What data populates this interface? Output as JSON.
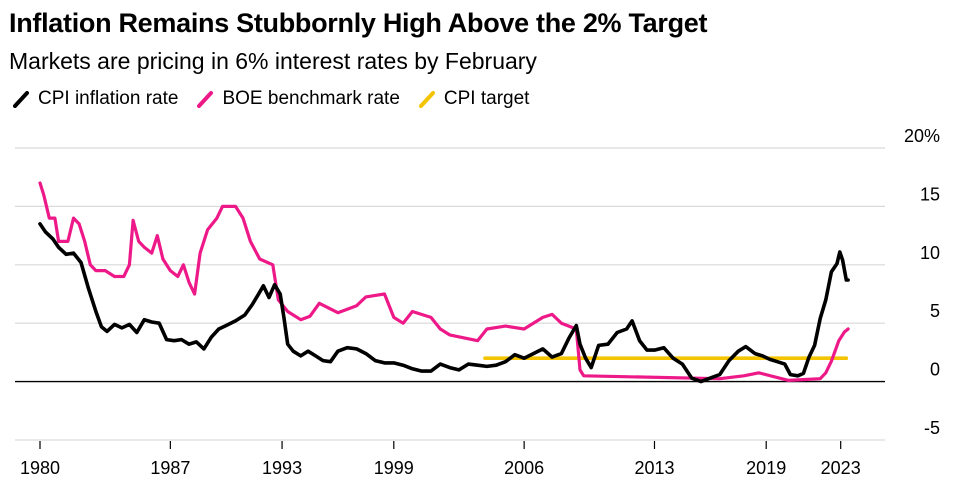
{
  "title": "Inflation Remains Stubbornly High Above the 2% Target",
  "subtitle": "Markets are pricing in 6% interest rates by February",
  "colors": {
    "cpi": "#000000",
    "boe": "#ee1989",
    "target": "#f5c400",
    "grid": "#d9d9d9",
    "zero": "#000000"
  },
  "chart_data": {
    "type": "line",
    "title": "Inflation Remains Stubbornly High Above the 2% Target",
    "subtitle": "Markets are pricing in 6% interest rates by February",
    "xlabel": "",
    "ylabel": "",
    "xlim": [
      1980,
      2023.5
    ],
    "ylim": [
      -5,
      20
    ],
    "y_ticks": [
      20,
      15,
      10,
      5,
      0,
      -5
    ],
    "y_tick_labels": [
      "20%",
      "15",
      "10",
      "5",
      "0",
      "-5"
    ],
    "x_ticks": [
      1980,
      1987,
      1993,
      1999,
      2006,
      2013,
      2019,
      2023
    ],
    "x_tick_labels": [
      "1980",
      "1987",
      "1993",
      "1999",
      "2006",
      "2013",
      "2019",
      "2023"
    ],
    "grid": true,
    "legend_position": "top-left",
    "series": [
      {
        "name": "CPI inflation rate",
        "color": "#000000",
        "points": [
          [
            1980.0,
            13.5
          ],
          [
            1980.3,
            12.8
          ],
          [
            1980.7,
            12.2
          ],
          [
            1981.0,
            11.5
          ],
          [
            1981.4,
            10.9
          ],
          [
            1981.8,
            11.0
          ],
          [
            1982.2,
            10.2
          ],
          [
            1982.6,
            8.0
          ],
          [
            1983.0,
            6.0
          ],
          [
            1983.3,
            4.7
          ],
          [
            1983.6,
            4.3
          ],
          [
            1984.0,
            4.9
          ],
          [
            1984.4,
            4.6
          ],
          [
            1984.8,
            4.9
          ],
          [
            1985.2,
            4.2
          ],
          [
            1985.6,
            5.3
          ],
          [
            1986.0,
            5.1
          ],
          [
            1986.4,
            5.0
          ],
          [
            1986.8,
            3.6
          ],
          [
            1987.2,
            3.5
          ],
          [
            1987.6,
            3.6
          ],
          [
            1988.0,
            3.2
          ],
          [
            1988.4,
            3.4
          ],
          [
            1988.8,
            2.8
          ],
          [
            1989.2,
            3.8
          ],
          [
            1989.6,
            4.5
          ],
          [
            1990.0,
            4.8
          ],
          [
            1990.5,
            5.2
          ],
          [
            1991.0,
            5.7
          ],
          [
            1991.4,
            6.6
          ],
          [
            1991.7,
            7.4
          ],
          [
            1992.0,
            8.2
          ],
          [
            1992.3,
            7.2
          ],
          [
            1992.6,
            8.3
          ],
          [
            1992.9,
            7.5
          ],
          [
            1993.1,
            5.5
          ],
          [
            1993.3,
            3.2
          ],
          [
            1993.6,
            2.6
          ],
          [
            1994.0,
            2.2
          ],
          [
            1994.4,
            2.6
          ],
          [
            1994.8,
            2.2
          ],
          [
            1995.2,
            1.8
          ],
          [
            1995.6,
            1.7
          ],
          [
            1996.0,
            2.6
          ],
          [
            1996.5,
            2.9
          ],
          [
            1997.0,
            2.8
          ],
          [
            1997.5,
            2.4
          ],
          [
            1998.0,
            1.8
          ],
          [
            1998.5,
            1.6
          ],
          [
            1999.0,
            1.6
          ],
          [
            1999.5,
            1.4
          ],
          [
            2000.0,
            1.1
          ],
          [
            2000.5,
            0.9
          ],
          [
            2001.0,
            0.9
          ],
          [
            2001.5,
            1.5
          ],
          [
            2002.0,
            1.2
          ],
          [
            2002.5,
            1.0
          ],
          [
            2003.0,
            1.5
          ],
          [
            2003.5,
            1.4
          ],
          [
            2004.0,
            1.3
          ],
          [
            2004.5,
            1.4
          ],
          [
            2005.0,
            1.7
          ],
          [
            2005.5,
            2.3
          ],
          [
            2006.0,
            2.0
          ],
          [
            2006.5,
            2.4
          ],
          [
            2007.0,
            2.8
          ],
          [
            2007.5,
            2.1
          ],
          [
            2008.0,
            2.4
          ],
          [
            2008.4,
            3.7
          ],
          [
            2008.8,
            4.8
          ],
          [
            2009.0,
            3.2
          ],
          [
            2009.3,
            2.0
          ],
          [
            2009.6,
            1.2
          ],
          [
            2010.0,
            3.1
          ],
          [
            2010.5,
            3.2
          ],
          [
            2011.0,
            4.2
          ],
          [
            2011.5,
            4.5
          ],
          [
            2011.8,
            5.2
          ],
          [
            2012.2,
            3.5
          ],
          [
            2012.6,
            2.7
          ],
          [
            2013.0,
            2.7
          ],
          [
            2013.5,
            2.9
          ],
          [
            2014.0,
            2.0
          ],
          [
            2014.5,
            1.5
          ],
          [
            2015.0,
            0.3
          ],
          [
            2015.5,
            0.0
          ],
          [
            2016.0,
            0.3
          ],
          [
            2016.5,
            0.6
          ],
          [
            2017.0,
            1.8
          ],
          [
            2017.5,
            2.6
          ],
          [
            2017.9,
            3.0
          ],
          [
            2018.4,
            2.4
          ],
          [
            2018.8,
            2.2
          ],
          [
            2019.2,
            1.9
          ],
          [
            2019.6,
            1.7
          ],
          [
            2020.0,
            1.5
          ],
          [
            2020.3,
            0.6
          ],
          [
            2020.7,
            0.5
          ],
          [
            2021.0,
            0.7
          ],
          [
            2021.3,
            2.1
          ],
          [
            2021.6,
            3.1
          ],
          [
            2021.9,
            5.4
          ],
          [
            2022.2,
            7.0
          ],
          [
            2022.5,
            9.4
          ],
          [
            2022.8,
            10.1
          ],
          [
            2022.95,
            11.1
          ],
          [
            2023.1,
            10.4
          ],
          [
            2023.3,
            8.7
          ],
          [
            2023.4,
            8.7
          ]
        ]
      },
      {
        "name": "BOE benchmark rate",
        "color": "#ee1989",
        "points": [
          [
            1980.0,
            17.0
          ],
          [
            1980.2,
            16.0
          ],
          [
            1980.5,
            14.0
          ],
          [
            1980.8,
            14.0
          ],
          [
            1981.0,
            12.0
          ],
          [
            1981.5,
            12.0
          ],
          [
            1981.8,
            14.0
          ],
          [
            1982.1,
            13.5
          ],
          [
            1982.4,
            12.0
          ],
          [
            1982.7,
            10.0
          ],
          [
            1983.0,
            9.5
          ],
          [
            1983.5,
            9.5
          ],
          [
            1984.0,
            9.0
          ],
          [
            1984.5,
            9.0
          ],
          [
            1984.8,
            10.0
          ],
          [
            1985.0,
            13.8
          ],
          [
            1985.3,
            12.0
          ],
          [
            1985.6,
            11.5
          ],
          [
            1986.0,
            11.0
          ],
          [
            1986.3,
            12.5
          ],
          [
            1986.6,
            10.5
          ],
          [
            1987.0,
            9.5
          ],
          [
            1987.4,
            9.0
          ],
          [
            1987.7,
            10.0
          ],
          [
            1988.0,
            8.5
          ],
          [
            1988.3,
            7.5
          ],
          [
            1988.6,
            11.0
          ],
          [
            1989.0,
            13.0
          ],
          [
            1989.5,
            14.0
          ],
          [
            1989.8,
            15.0
          ],
          [
            1990.5,
            15.0
          ],
          [
            1990.9,
            14.0
          ],
          [
            1991.3,
            12.0
          ],
          [
            1991.8,
            10.5
          ],
          [
            1992.5,
            10.0
          ],
          [
            1992.8,
            7.0
          ],
          [
            1993.3,
            6.0
          ],
          [
            1994.0,
            5.3
          ],
          [
            1994.5,
            5.6
          ],
          [
            1995.0,
            6.7
          ],
          [
            1996.0,
            5.9
          ],
          [
            1997.0,
            6.5
          ],
          [
            1997.5,
            7.25
          ],
          [
            1998.5,
            7.5
          ],
          [
            1999.0,
            5.5
          ],
          [
            1999.5,
            5.0
          ],
          [
            2000.0,
            6.0
          ],
          [
            2001.0,
            5.5
          ],
          [
            2001.5,
            4.5
          ],
          [
            2002.0,
            4.0
          ],
          [
            2003.5,
            3.5
          ],
          [
            2004.0,
            4.5
          ],
          [
            2005.0,
            4.75
          ],
          [
            2006.0,
            4.5
          ],
          [
            2007.0,
            5.5
          ],
          [
            2007.5,
            5.75
          ],
          [
            2008.0,
            5.0
          ],
          [
            2008.8,
            4.5
          ],
          [
            2009.0,
            1.0
          ],
          [
            2009.2,
            0.5
          ],
          [
            2016.5,
            0.25
          ],
          [
            2017.8,
            0.5
          ],
          [
            2018.6,
            0.75
          ],
          [
            2020.2,
            0.1
          ],
          [
            2021.9,
            0.25
          ],
          [
            2022.2,
            0.75
          ],
          [
            2022.5,
            1.75
          ],
          [
            2022.9,
            3.5
          ],
          [
            2023.2,
            4.25
          ],
          [
            2023.4,
            4.5
          ]
        ]
      },
      {
        "name": "CPI target",
        "color": "#f5c400",
        "points": [
          [
            2003.9,
            2.0
          ],
          [
            2023.3,
            2.0
          ]
        ]
      }
    ]
  },
  "legend": [
    {
      "label": "CPI inflation rate",
      "color": "#000000"
    },
    {
      "label": "BOE benchmark rate",
      "color": "#ee1989"
    },
    {
      "label": "CPI target",
      "color": "#f5c400"
    }
  ]
}
